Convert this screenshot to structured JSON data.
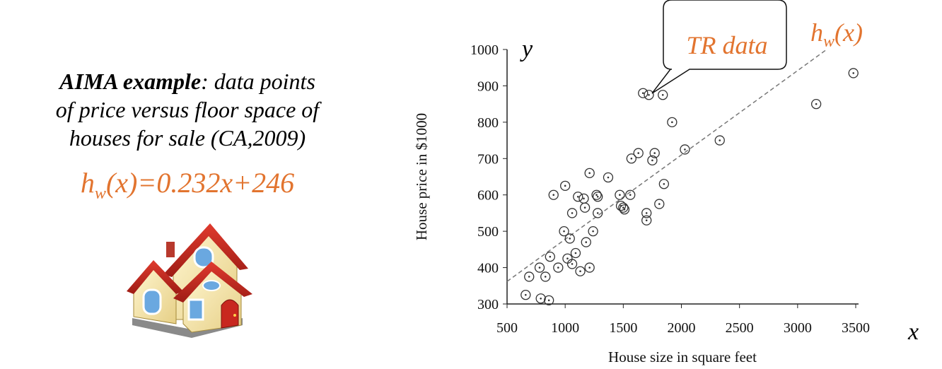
{
  "left_panel": {
    "title_bold": "AIMA example",
    "title_rest": ": data points",
    "line2": "of price versus floor space of",
    "line3": "houses for sale (CA,2009)",
    "formula_h": "h",
    "formula_sub": "w",
    "formula_rest": "(x)=0.232x+246",
    "house_icon": "house-icon"
  },
  "annotations": {
    "callout": "TR data",
    "line_label_h": "h",
    "line_label_sub": "w",
    "line_label_rest": "(x)",
    "y_var": "y",
    "x_var": "x"
  },
  "colors": {
    "accent": "#e2742f",
    "points": "#333333",
    "fit_line": "#777777"
  },
  "chart_data": {
    "type": "scatter",
    "xlabel": "House size in square feet",
    "ylabel": "House price in $1000",
    "xlim": [
      500,
      3500
    ],
    "ylim": [
      300,
      1000
    ],
    "x_ticks": [
      500,
      1000,
      1500,
      2000,
      2500,
      3000,
      3500
    ],
    "y_ticks": [
      300,
      400,
      500,
      600,
      700,
      800,
      900,
      1000
    ],
    "grid": false,
    "fit_line": {
      "slope": 0.232,
      "intercept": 246,
      "style": "dashed"
    },
    "points": [
      [
        660,
        325
      ],
      [
        690,
        375
      ],
      [
        780,
        400
      ],
      [
        790,
        315
      ],
      [
        830,
        375
      ],
      [
        860,
        310
      ],
      [
        870,
        430
      ],
      [
        900,
        600
      ],
      [
        940,
        400
      ],
      [
        990,
        500
      ],
      [
        1000,
        625
      ],
      [
        1020,
        425
      ],
      [
        1040,
        480
      ],
      [
        1060,
        550
      ],
      [
        1060,
        410
      ],
      [
        1090,
        440
      ],
      [
        1110,
        595
      ],
      [
        1130,
        390
      ],
      [
        1160,
        590
      ],
      [
        1170,
        565
      ],
      [
        1180,
        470
      ],
      [
        1210,
        660
      ],
      [
        1210,
        400
      ],
      [
        1240,
        500
      ],
      [
        1270,
        600
      ],
      [
        1280,
        550
      ],
      [
        1280,
        595
      ],
      [
        1370,
        648
      ],
      [
        1470,
        600
      ],
      [
        1480,
        570
      ],
      [
        1500,
        565
      ],
      [
        1510,
        560
      ],
      [
        1560,
        600
      ],
      [
        1570,
        700
      ],
      [
        1630,
        715
      ],
      [
        1670,
        880
      ],
      [
        1700,
        550
      ],
      [
        1700,
        530
      ],
      [
        1720,
        875
      ],
      [
        1750,
        695
      ],
      [
        1770,
        715
      ],
      [
        1810,
        575
      ],
      [
        1840,
        875
      ],
      [
        1850,
        630
      ],
      [
        1920,
        800
      ],
      [
        2030,
        725
      ],
      [
        2330,
        750
      ],
      [
        3160,
        850
      ],
      [
        3480,
        935
      ]
    ]
  }
}
